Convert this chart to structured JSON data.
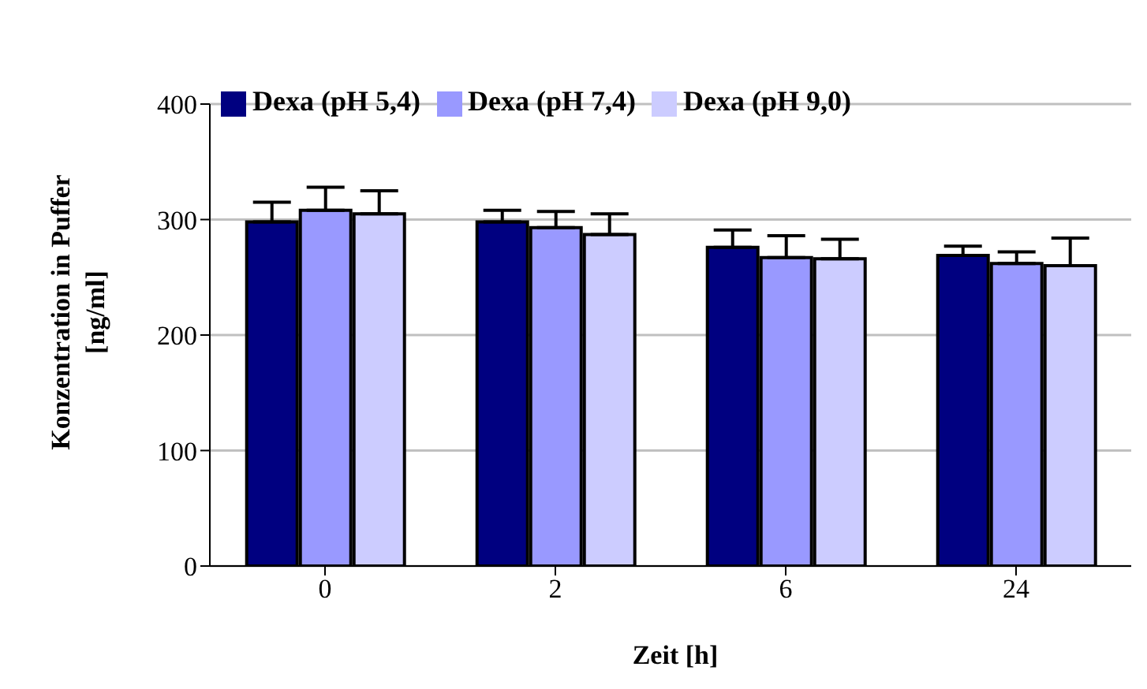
{
  "chart_data": {
    "type": "bar",
    "xlabel": "Zeit [h]",
    "ylabel": "Konzentration in Puffer [ng/ml]",
    "categories": [
      "0",
      "2",
      "6",
      "24"
    ],
    "series": [
      {
        "name": "Dexa (pH 5,4)",
        "color": "#000080",
        "values": [
          298,
          298,
          276,
          269
        ],
        "errors": [
          [
            298,
            315
          ],
          [
            298,
            308
          ],
          [
            276,
            291
          ],
          [
            269,
            277
          ]
        ]
      },
      {
        "name": "Dexa (pH 7,4)",
        "color": "#9999ff",
        "values": [
          308,
          293,
          267,
          262
        ],
        "errors": [
          [
            308,
            328
          ],
          [
            293,
            307
          ],
          [
            267,
            286
          ],
          [
            262,
            272
          ]
        ]
      },
      {
        "name": "Dexa (pH 9,0)",
        "color": "#ccccff",
        "values": [
          305,
          287,
          266,
          260
        ],
        "errors": [
          [
            305,
            325
          ],
          [
            287,
            305
          ],
          [
            266,
            283
          ],
          [
            260,
            284
          ]
        ]
      }
    ],
    "ylim": [
      0,
      400
    ],
    "yticks": [
      0,
      100,
      200,
      300,
      400
    ],
    "grid": "y",
    "legend": "top"
  }
}
